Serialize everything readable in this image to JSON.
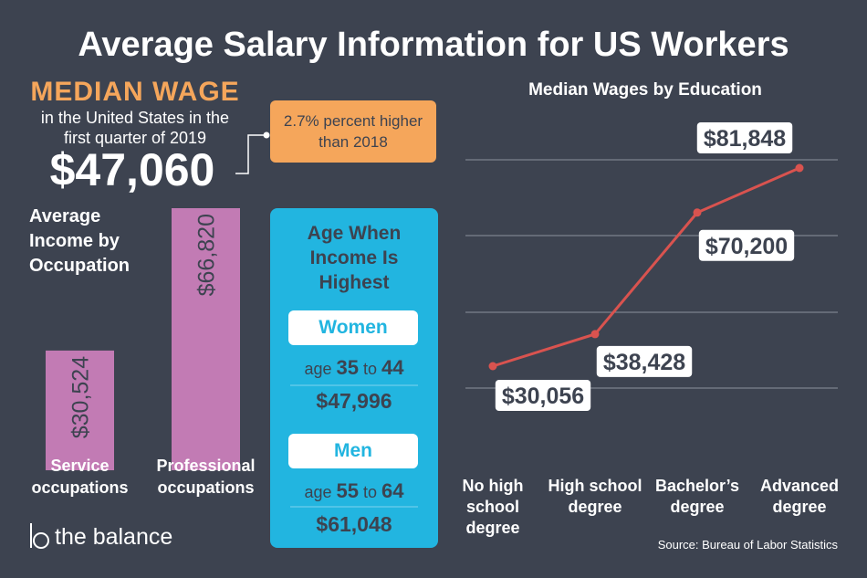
{
  "title": "Average Salary Information for US Workers",
  "median_wage": {
    "heading": "MEDIAN WAGE",
    "subtitle": "in the United States in the first quarter of 2019",
    "value": "$47,060",
    "note": "2.7% percent higher than 2018"
  },
  "age_panel": {
    "heading": "Age When Income Is Highest",
    "groups": [
      {
        "label": "Women",
        "prefix": "age",
        "low": "35",
        "joiner": "to",
        "high": "44",
        "income": "$47,996"
      },
      {
        "label": "Men",
        "prefix": "age",
        "low": "55",
        "joiner": "to",
        "high": "64",
        "income": "$61,048"
      }
    ]
  },
  "chart_data": [
    {
      "type": "bar",
      "title": "Average Income by Occupation",
      "categories": [
        "Service occupations",
        "Professional occupations"
      ],
      "values": [
        30524,
        66820
      ],
      "value_labels": [
        "$30,524",
        "$66,820"
      ],
      "color": "#c27bb4"
    },
    {
      "type": "line",
      "title": "Median Wages by Education",
      "categories": [
        "No high school degree",
        "High school degree",
        "Bachelor’s degree",
        "Advanced degree"
      ],
      "values": [
        30056,
        38428,
        70200,
        81848
      ],
      "value_labels": [
        "$30,056",
        "$38,428",
        "$70,200",
        "$81,848"
      ],
      "color": "#d9534f",
      "grid": true
    }
  ],
  "source": "Source: Bureau of Labor Statistics",
  "logo": "the balance"
}
